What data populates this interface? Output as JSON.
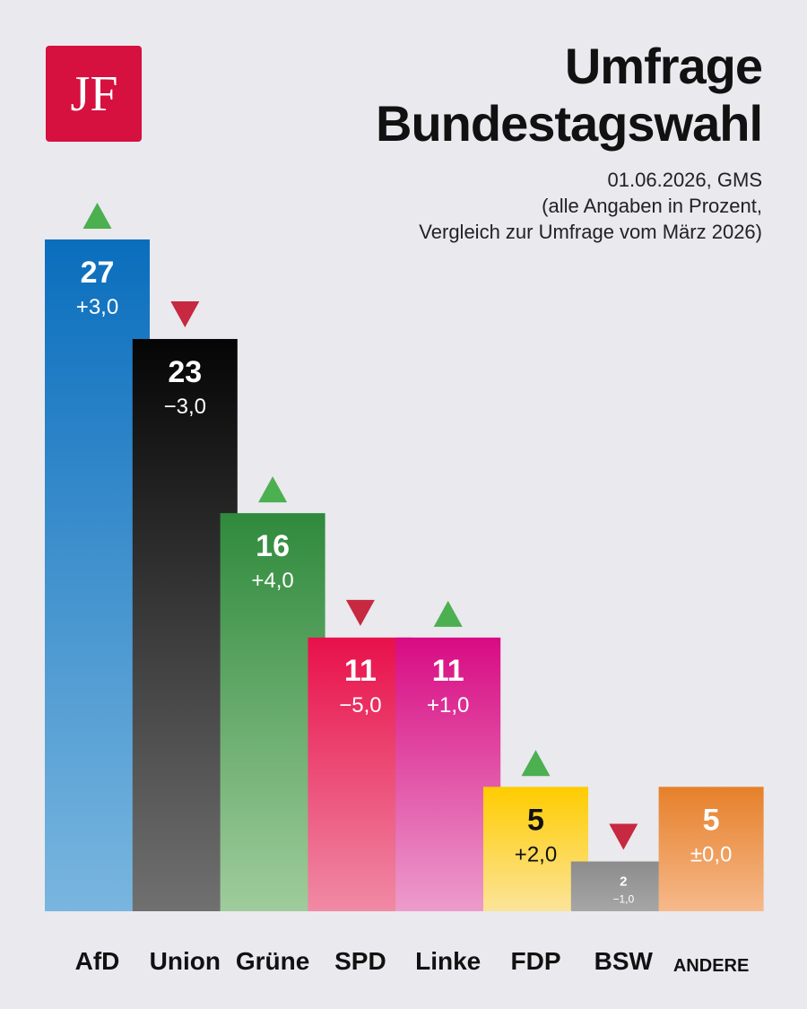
{
  "logo": {
    "text": "JF",
    "bg": "#d6103f"
  },
  "header": {
    "title_line1": "Umfrage",
    "title_line2": "Bundestagswahl",
    "subtitle_line1": "01.06.2026, GMS",
    "subtitle_line2": "(alle Angaben in Prozent,",
    "subtitle_line3": "Vergleich zur Umfrage vom März 2026)"
  },
  "colors": {
    "up": "#4caf50",
    "down": "#c62940",
    "background": "#e9e9ee"
  },
  "chart_data": {
    "type": "bar",
    "categories": [
      "AfD",
      "Union",
      "Grüne",
      "SPD",
      "Linke",
      "FDP",
      "BSW",
      "ANDERE"
    ],
    "values": [
      27,
      23,
      16,
      11,
      11,
      5,
      2,
      5
    ],
    "value_labels": [
      "27",
      "23",
      "16",
      "11",
      "11",
      "5",
      "2",
      "5"
    ],
    "changes": [
      3.0,
      -3.0,
      4.0,
      -5.0,
      1.0,
      2.0,
      -1.0,
      0.0
    ],
    "change_labels": [
      "+3,0",
      "−3,0",
      "+4,0",
      "−5,0",
      "+1,0",
      "+2,0",
      "−1,0",
      "±0,0"
    ],
    "trend": [
      "up",
      "down",
      "up",
      "down",
      "up",
      "up",
      "down",
      "none"
    ],
    "colors": [
      [
        "#0a6ebd",
        "#79b6df"
      ],
      [
        "#050505",
        "#707070"
      ],
      [
        "#2f8a3c",
        "#9fcc9c"
      ],
      [
        "#e8104a",
        "#f08aa5"
      ],
      [
        "#d80b83",
        "#ec9ccc"
      ],
      [
        "#ffcc00",
        "#fbe49a"
      ],
      [
        "#8c8c8c",
        "#a6a6a6"
      ],
      [
        "#e6802a",
        "#f6b98b"
      ]
    ],
    "text_colors": [
      "#ffffff",
      "#ffffff",
      "#ffffff",
      "#ffffff",
      "#ffffff",
      "#111111",
      "#ffffff",
      "#ffffff"
    ],
    "ylim": [
      0,
      27
    ],
    "grid": false,
    "legend": "none"
  }
}
